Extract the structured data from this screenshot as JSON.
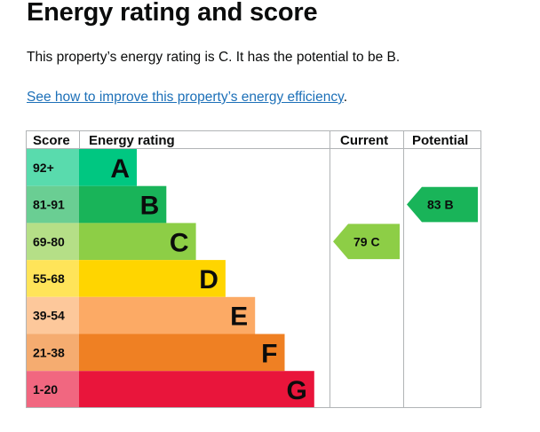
{
  "header": {
    "title": "Energy rating and score"
  },
  "summary": {
    "text": "This property’s energy rating is C. It has the potential to be B."
  },
  "improve_link": {
    "text": "See how to improve this property’s energy efficiency",
    "suffix": "."
  },
  "chart_data": {
    "type": "table",
    "columns": [
      "Score",
      "Energy rating",
      "Current",
      "Potential"
    ],
    "bands": [
      {
        "score": "92+",
        "rating": "A",
        "color": "#00c781"
      },
      {
        "score": "81-91",
        "rating": "B",
        "color": "#19b459"
      },
      {
        "score": "69-80",
        "rating": "C",
        "color": "#8dce46"
      },
      {
        "score": "55-68",
        "rating": "D",
        "color": "#ffd500"
      },
      {
        "score": "39-54",
        "rating": "E",
        "color": "#fcaa65"
      },
      {
        "score": "21-38",
        "rating": "F",
        "color": "#ef8023"
      },
      {
        "score": "1-20",
        "rating": "G",
        "color": "#e9153b"
      }
    ],
    "current": {
      "score": 79,
      "rating": "C",
      "label": "79  C",
      "color": "#8dce46"
    },
    "potential": {
      "score": 83,
      "rating": "B",
      "label": "83  B",
      "color": "#19b459"
    }
  }
}
